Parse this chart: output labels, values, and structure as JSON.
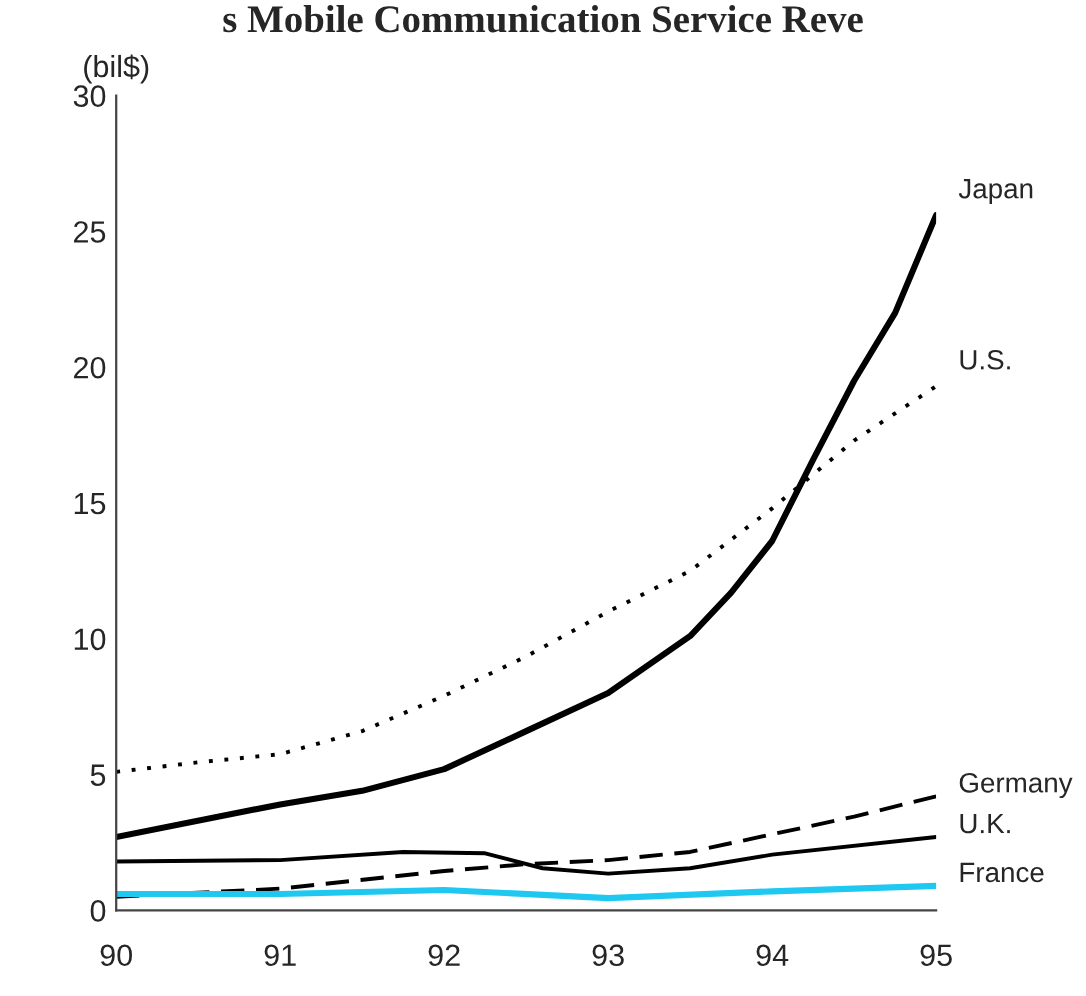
{
  "chart_data": {
    "type": "line",
    "title": "s Mobile Communication Service Reve",
    "ylabel": "(bil$)",
    "xlim": [
      90,
      95
    ],
    "xticks": [
      90,
      91,
      92,
      93,
      94,
      95
    ],
    "ylim": [
      0,
      30
    ],
    "yticks": [
      0,
      5,
      10,
      15,
      20,
      25,
      30
    ],
    "grid": false,
    "legend": false,
    "series": [
      {
        "name": "Japan",
        "color": "#000000",
        "line_style": "solid",
        "x": [
          90,
          91,
          91.5,
          92,
          92.5,
          93,
          93.5,
          93.75,
          94,
          94.25,
          94.5,
          94.75,
          95
        ],
        "values": [
          2.7,
          3.9,
          4.4,
          5.2,
          6.6,
          8.0,
          10.1,
          11.7,
          13.6,
          16.6,
          19.5,
          22.0,
          25.6
        ]
      },
      {
        "name": "U.S.",
        "color": "#000000",
        "line_style": "dotted",
        "x": [
          90,
          90.5,
          91,
          91.5,
          92,
          92.5,
          93,
          93.5,
          94,
          94.5,
          95
        ],
        "values": [
          5.1,
          5.45,
          5.75,
          6.6,
          7.9,
          9.35,
          11.0,
          12.5,
          14.8,
          17.3,
          19.3
        ]
      },
      {
        "name": "Germany",
        "color": "#000000",
        "line_style": "dashed",
        "x": [
          90,
          91,
          92,
          92.5,
          93,
          93.5,
          94,
          94.5,
          95
        ],
        "values": [
          0.5,
          0.8,
          1.45,
          1.7,
          1.85,
          2.15,
          2.8,
          3.45,
          4.2
        ]
      },
      {
        "name": "U.K.",
        "color": "#000000",
        "line_style": "solid",
        "x": [
          90,
          91,
          91.75,
          92.25,
          92.6,
          93,
          93.5,
          94,
          95
        ],
        "values": [
          1.8,
          1.85,
          2.15,
          2.1,
          1.55,
          1.35,
          1.55,
          2.05,
          2.7
        ]
      },
      {
        "name": "France",
        "color": "#1ec8f0",
        "line_style": "solid",
        "x": [
          90,
          91,
          92,
          93,
          94,
          95
        ],
        "values": [
          0.6,
          0.6,
          0.75,
          0.45,
          0.7,
          0.9
        ]
      }
    ]
  }
}
